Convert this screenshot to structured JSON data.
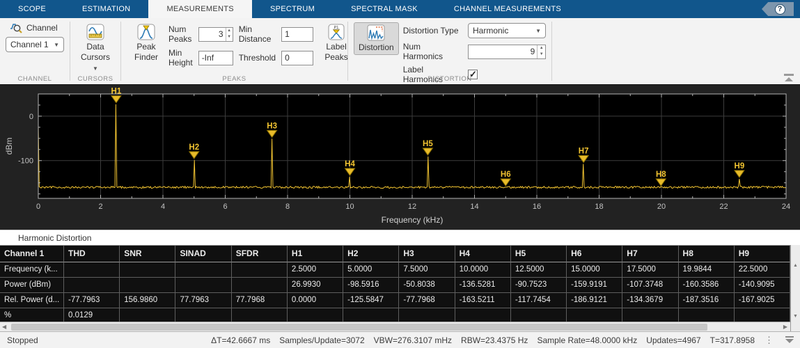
{
  "tabs": {
    "items": [
      {
        "label": "SCOPE",
        "active": false
      },
      {
        "label": "ESTIMATION",
        "active": false
      },
      {
        "label": "MEASUREMENTS",
        "active": true
      },
      {
        "label": "SPECTRUM",
        "active": false
      },
      {
        "label": "SPECTRAL MASK",
        "active": false
      },
      {
        "label": "CHANNEL MEASUREMENTS",
        "active": false
      }
    ],
    "help_label": "?"
  },
  "toolbar": {
    "channel": {
      "button_label": "Channel",
      "dropdown_value": "Channel 1",
      "group_label": "CHANNEL"
    },
    "cursors": {
      "button_label": "Data Cursors",
      "group_label": "CURSORS"
    },
    "peaks": {
      "peak_finder_label": "Peak Finder",
      "num_peaks_label": "Num Peaks",
      "num_peaks_value": "3",
      "min_height_label": "Min Height",
      "min_height_value": "-Inf",
      "min_distance_label": "Min Distance",
      "min_distance_value": "1",
      "threshold_label": "Threshold",
      "threshold_value": "0",
      "label_peaks_label": "Label Peaks",
      "group_label": "PEAKS"
    },
    "distortion": {
      "button_label": "Distortion",
      "type_label": "Distortion Type",
      "type_value": "Harmonic",
      "num_harmonics_label": "Num Harmonics",
      "num_harmonics_value": "9",
      "label_harmonics_label": "Label Harmonics",
      "label_harmonics_checked": true,
      "group_label": "DISTORTION"
    }
  },
  "chart_data": {
    "type": "line",
    "title": "",
    "xlabel": "Frequency (kHz)",
    "ylabel": "dBm",
    "xlim": [
      0,
      24
    ],
    "ylim": [
      -185,
      50
    ],
    "x_ticks": [
      0,
      2,
      4,
      6,
      8,
      10,
      12,
      14,
      16,
      18,
      20,
      22,
      24
    ],
    "y_ticks": [
      0,
      -100
    ],
    "grid": true,
    "legend": "none",
    "line_color": "#f2c431",
    "marker_fill": "#e8bb2a",
    "noise_floor_dbm": -160,
    "dc_spike_dbm": -20,
    "series": [
      {
        "name": "Channel 1"
      }
    ],
    "harmonics": [
      {
        "label": "H1",
        "freq_khz": 2.5,
        "power_dbm": 26.993
      },
      {
        "label": "H2",
        "freq_khz": 5.0,
        "power_dbm": -98.5916
      },
      {
        "label": "H3",
        "freq_khz": 7.5,
        "power_dbm": -50.8038
      },
      {
        "label": "H4",
        "freq_khz": 10.0,
        "power_dbm": -136.5281
      },
      {
        "label": "H5",
        "freq_khz": 12.5,
        "power_dbm": -90.7523
      },
      {
        "label": "H6",
        "freq_khz": 15.0,
        "power_dbm": -159.9191
      },
      {
        "label": "H7",
        "freq_khz": 17.5,
        "power_dbm": -107.3748
      },
      {
        "label": "H8",
        "freq_khz": 19.9844,
        "power_dbm": -160.3586
      },
      {
        "label": "H9",
        "freq_khz": 22.5,
        "power_dbm": -140.9095
      }
    ]
  },
  "panel": {
    "title": "Harmonic Distortion"
  },
  "table": {
    "columns": [
      "Channel 1",
      "THD",
      "SNR",
      "SINAD",
      "SFDR",
      "H1",
      "H2",
      "H3",
      "H4",
      "H5",
      "H6",
      "H7",
      "H8",
      "H9"
    ],
    "rows": [
      {
        "label": "Frequency (k...",
        "values": [
          "",
          "",
          "",
          "",
          "2.5000",
          "5.0000",
          "7.5000",
          "10.0000",
          "12.5000",
          "15.0000",
          "17.5000",
          "19.9844",
          "22.5000"
        ]
      },
      {
        "label": "Power (dBm)",
        "values": [
          "",
          "",
          "",
          "",
          "26.9930",
          "-98.5916",
          "-50.8038",
          "-136.5281",
          "-90.7523",
          "-159.9191",
          "-107.3748",
          "-160.3586",
          "-140.9095"
        ]
      },
      {
        "label": "Rel. Power (d...",
        "values": [
          "-77.7963",
          "156.9860",
          "77.7963",
          "77.7968",
          "0.0000",
          "-125.5847",
          "-77.7968",
          "-163.5211",
          "-117.7454",
          "-186.9121",
          "-134.3679",
          "-187.3516",
          "-167.9025"
        ]
      },
      {
        "label": "%",
        "values": [
          "0.0129",
          "",
          "",
          "",
          "",
          "",
          "",
          "",
          "",
          "",
          "",
          "",
          ""
        ]
      }
    ]
  },
  "status_bar": {
    "state": "Stopped",
    "stats": [
      "ΔT=42.6667 ms",
      "Samples/Update=3072",
      "VBW=276.3107 mHz",
      "RBW=23.4375 Hz",
      "Sample Rate=48.0000 kHz",
      "Updates=4967",
      "T=317.8958"
    ]
  }
}
